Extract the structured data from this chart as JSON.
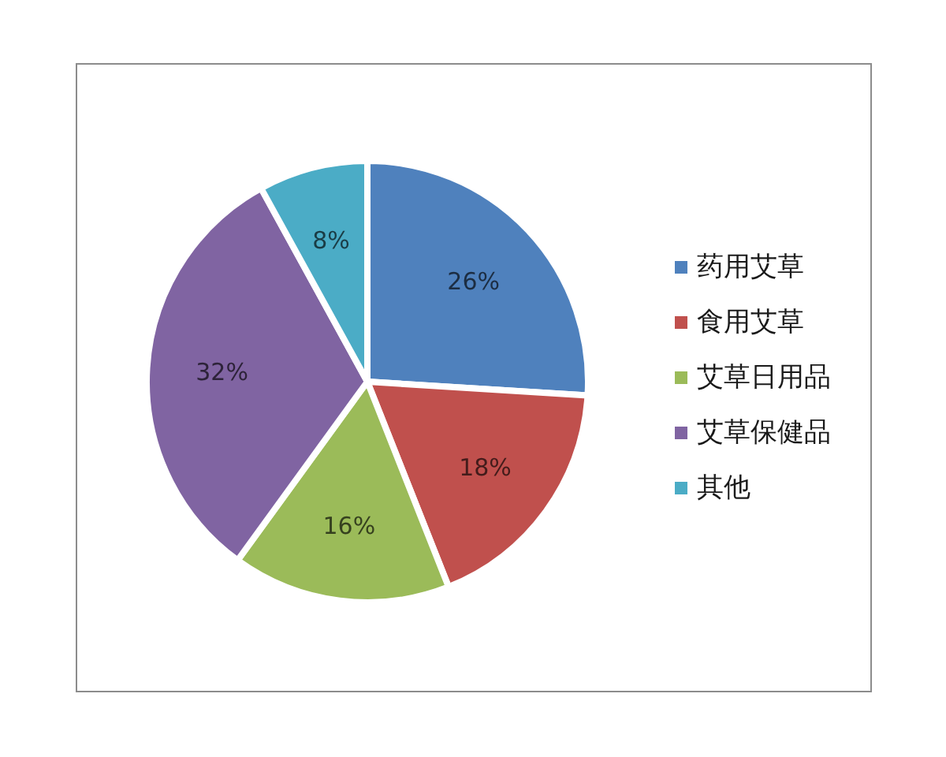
{
  "chart_data": {
    "type": "pie",
    "categories": [
      "药用艾草",
      "食用艾草",
      "艾草日用品",
      "艾草保健品",
      "其他"
    ],
    "values": [
      26,
      18,
      16,
      32,
      8
    ],
    "value_labels": [
      "26%",
      "18%",
      "16%",
      "32%",
      "8%"
    ],
    "colors": [
      "#4f81bd",
      "#c0504d",
      "#9bbb59",
      "#8064a2",
      "#4bacc6"
    ],
    "legend": "right"
  }
}
